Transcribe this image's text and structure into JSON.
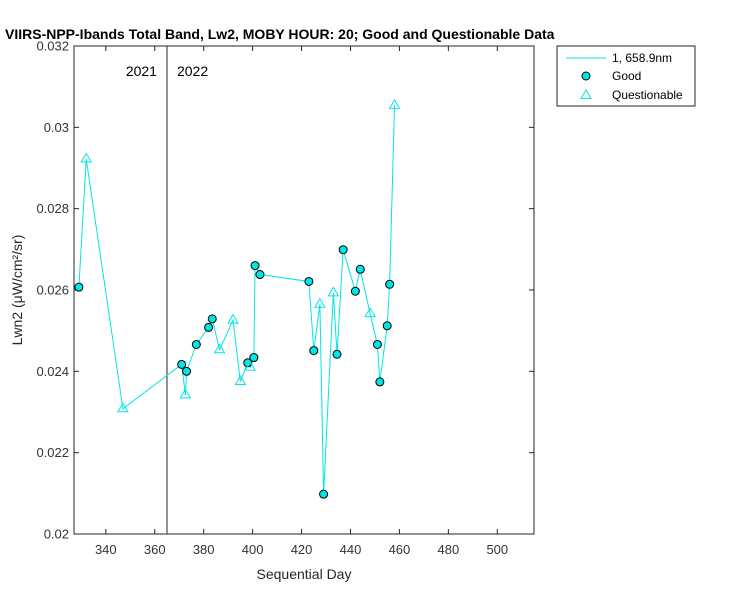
{
  "chart_data": {
    "type": "line",
    "title": "VIIRS-NPP-Ibands Total Band, Lw2, MOBY HOUR: 20;  Good and Questionable Data",
    "xlabel": "Sequential Day",
    "ylabel": "Lwn2 (μW/cm²/sr)",
    "xlim": [
      327,
      515
    ],
    "ylim": [
      0.02,
      0.032
    ],
    "xticks": [
      340,
      360,
      380,
      400,
      420,
      440,
      460,
      480,
      500
    ],
    "yticks": [
      0.02,
      0.022,
      0.024,
      0.026,
      0.028,
      0.03,
      0.032
    ],
    "grid": false,
    "legend_position": "outside-top-right",
    "line_color": "#00e5e5",
    "good_fill": "#00e5e5",
    "year_divider": {
      "x": 365,
      "left_label": "2021",
      "right_label": "2022"
    },
    "series": [
      {
        "name": "1, 658.9nm",
        "points": [
          {
            "x": 329,
            "y": 0.02607,
            "q": "good"
          },
          {
            "x": 332,
            "y": 0.02922,
            "q": "questionable"
          },
          {
            "x": 347,
            "y": 0.02308,
            "q": "questionable"
          },
          {
            "x": 371,
            "y": 0.02417,
            "q": "good"
          },
          {
            "x": 372.5,
            "y": 0.02342,
            "q": "questionable"
          },
          {
            "x": 373,
            "y": 0.024,
            "q": "good"
          },
          {
            "x": 377,
            "y": 0.02466,
            "q": "good"
          },
          {
            "x": 382,
            "y": 0.02508,
            "q": "good"
          },
          {
            "x": 383.5,
            "y": 0.02529,
            "q": "good"
          },
          {
            "x": 386.5,
            "y": 0.02453,
            "q": "questionable"
          },
          {
            "x": 392,
            "y": 0.02526,
            "q": "questionable"
          },
          {
            "x": 395,
            "y": 0.02375,
            "q": "questionable"
          },
          {
            "x": 398,
            "y": 0.02421,
            "q": "good"
          },
          {
            "x": 399,
            "y": 0.0241,
            "q": "questionable"
          },
          {
            "x": 400.5,
            "y": 0.02434,
            "q": "good"
          },
          {
            "x": 401,
            "y": 0.0266,
            "q": "good"
          },
          {
            "x": 403,
            "y": 0.02638,
            "q": "good"
          },
          {
            "x": 423,
            "y": 0.02621,
            "q": "good"
          },
          {
            "x": 425,
            "y": 0.02451,
            "q": "good"
          },
          {
            "x": 427.5,
            "y": 0.02565,
            "q": "questionable"
          },
          {
            "x": 429,
            "y": 0.02098,
            "q": "good"
          },
          {
            "x": 433,
            "y": 0.02593,
            "q": "questionable"
          },
          {
            "x": 434.5,
            "y": 0.02442,
            "q": "good"
          },
          {
            "x": 437,
            "y": 0.02699,
            "q": "good"
          },
          {
            "x": 442,
            "y": 0.02597,
            "q": "good"
          },
          {
            "x": 444,
            "y": 0.02651,
            "q": "good"
          },
          {
            "x": 448,
            "y": 0.02542,
            "q": "questionable"
          },
          {
            "x": 451,
            "y": 0.02466,
            "q": "good"
          },
          {
            "x": 452,
            "y": 0.02374,
            "q": "good"
          },
          {
            "x": 455,
            "y": 0.02512,
            "q": "good"
          },
          {
            "x": 456,
            "y": 0.02614,
            "q": "good"
          },
          {
            "x": 458,
            "y": 0.03054,
            "q": "questionable"
          }
        ]
      }
    ],
    "legend": [
      {
        "label": "1, 658.9nm",
        "marker": "line"
      },
      {
        "label": "Good",
        "marker": "circle"
      },
      {
        "label": "Questionable",
        "marker": "triangle"
      }
    ]
  }
}
